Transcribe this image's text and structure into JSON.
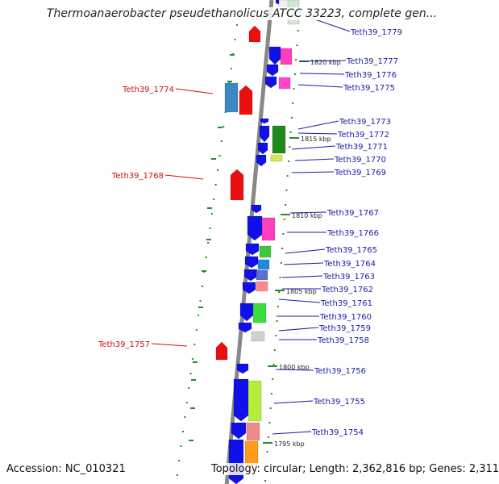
{
  "title": "Thermoanaerobacter pseudethanolicus ATCC 33223, complete gen...",
  "footer": {
    "accession": "Accession: NC_010321",
    "topology": "Topology: circular; Length: 2,362,816 bp; Genes: 2,311"
  },
  "colors": {
    "blue_gene": "#1010e8",
    "red_gene": "#e81010",
    "right_label": "#1a1aa8",
    "left_label": "#cc1111",
    "backbone": "#888888",
    "tick": "#2a8a2a"
  },
  "scale_labels": [
    "1820 kbp",
    "1815 kbp",
    "1810 kbp",
    "1805 kbp",
    "1800 kbp",
    "1795 kbp"
  ],
  "right_labels": [
    "Teth39_1779",
    "Teth39_1777",
    "Teth39_1776",
    "Teth39_1775",
    "Teth39_1773",
    "Teth39_1772",
    "Teth39_1771",
    "Teth39_1770",
    "Teth39_1769",
    "Teth39_1767",
    "Teth39_1766",
    "Teth39_1765",
    "Teth39_1764",
    "Teth39_1763",
    "Teth39_1762",
    "Teth39_1761",
    "Teth39_1760",
    "Teth39_1759",
    "Teth39_1758",
    "Teth39_1756",
    "Teth39_1755",
    "Teth39_1754"
  ],
  "left_labels": [
    "Teth39_1774",
    "Teth39_1768",
    "Teth39_1757"
  ]
}
